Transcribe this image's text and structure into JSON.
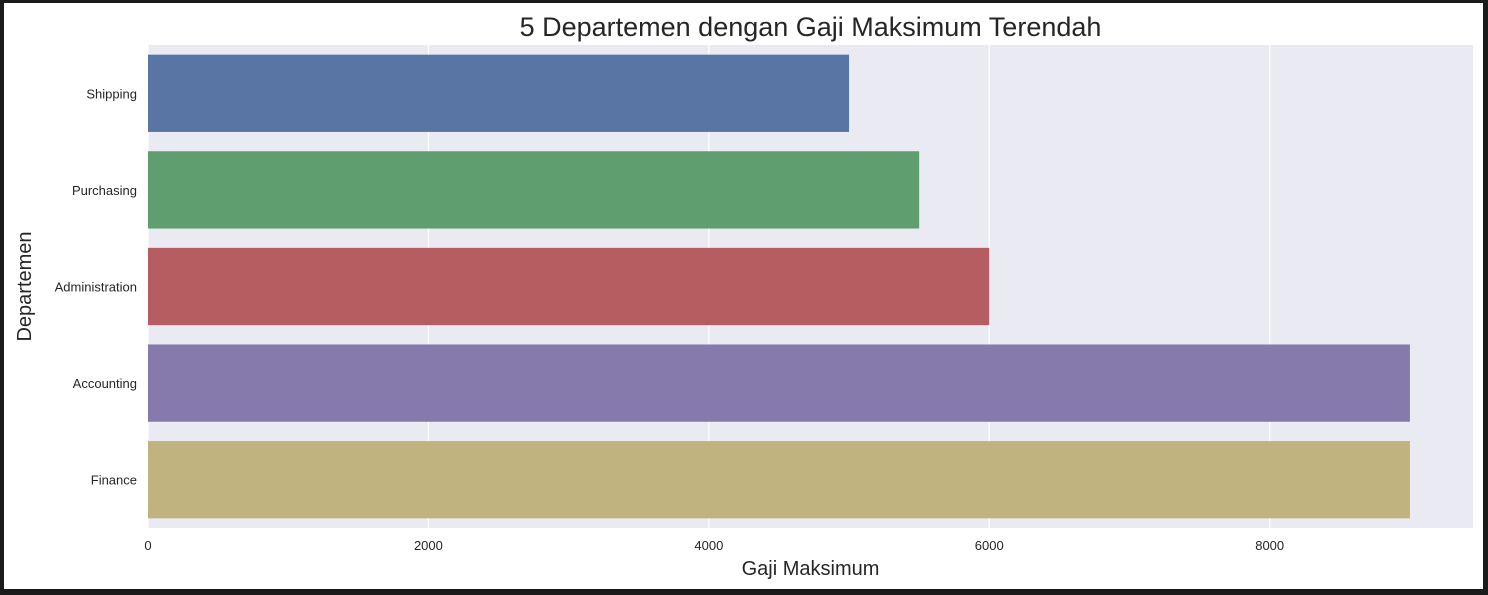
{
  "chart_data": {
    "type": "bar",
    "orientation": "horizontal",
    "title": "5 Departemen dengan Gaji Maksimum Terendah",
    "xlabel": "Gaji Maksimum",
    "ylabel": "Departemen",
    "categories": [
      "Shipping",
      "Purchasing",
      "Administration",
      "Accounting",
      "Finance"
    ],
    "values": [
      5000,
      5500,
      6000,
      9000,
      9000
    ],
    "xlim": [
      0,
      9450
    ],
    "xticks": [
      0,
      2000,
      4000,
      6000,
      8000
    ],
    "xtick_labels": [
      "0",
      "2000",
      "4000",
      "6000",
      "8000"
    ],
    "grid": true,
    "colors": {
      "plot_background": "#eaeaf2",
      "grid": "#ffffff",
      "bars": [
        "#5975a4",
        "#5f9e6e",
        "#b55d60",
        "#857aab",
        "#c1b37f"
      ]
    }
  }
}
